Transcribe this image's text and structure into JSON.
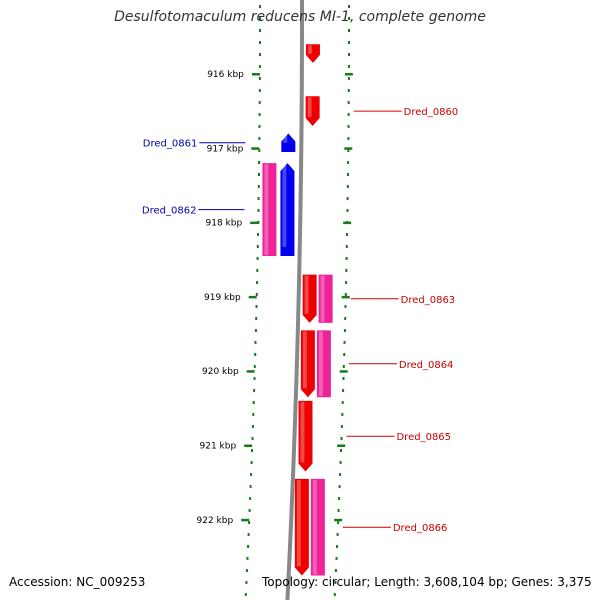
{
  "header": {
    "title": "Desulfotomaculum reducens MI-1, complete genome"
  },
  "footer": {
    "accession": "Accession: NC_009253",
    "summary": "Topology: circular; Length: 3,608,104 bp; Genes: 3,375"
  },
  "colors": {
    "backbone": "#888888",
    "forward_cds": "#ee0000",
    "reverse_cds": "#0000ee",
    "feature_pink": "#ee2299",
    "label_forward": "#cc0000",
    "label_reverse": "#0000aa",
    "ruler_tick": "#1a7a1a",
    "ruler_label": "#000000"
  },
  "scale": {
    "unit": "kbp",
    "start_kbp": 915.6,
    "end_kbp": 922.7
  },
  "ruler": [
    "916 kbp",
    "917 kbp",
    "918 kbp",
    "919 kbp",
    "920 kbp",
    "921 kbp",
    "922 kbp"
  ],
  "genes": [
    {
      "label": "",
      "start_kbp": 915.6,
      "end_kbp": 915.85,
      "strand": "forward"
    },
    {
      "label": "Dred_0860",
      "start_kbp": 916.3,
      "end_kbp": 916.7,
      "strand": "forward"
    },
    {
      "label": "Dred_0861",
      "start_kbp": 916.8,
      "end_kbp": 917.05,
      "strand": "reverse"
    },
    {
      "label": "Dred_0862",
      "start_kbp": 917.2,
      "end_kbp": 918.45,
      "strand": "reverse"
    },
    {
      "label": "Dred_0863",
      "start_kbp": 918.7,
      "end_kbp": 919.35,
      "strand": "forward"
    },
    {
      "label": "Dred_0864",
      "start_kbp": 919.45,
      "end_kbp": 920.35,
      "strand": "forward"
    },
    {
      "label": "Dred_0865",
      "start_kbp": 920.4,
      "end_kbp": 921.35,
      "strand": "forward"
    },
    {
      "label": "Dred_0866",
      "start_kbp": 921.45,
      "end_kbp": 922.75,
      "strand": "forward"
    }
  ],
  "features": [
    {
      "start_kbp": 917.2,
      "end_kbp": 918.45,
      "side": "reverse"
    },
    {
      "start_kbp": 918.7,
      "end_kbp": 919.35,
      "side": "forward"
    },
    {
      "start_kbp": 919.45,
      "end_kbp": 920.35,
      "side": "forward"
    },
    {
      "start_kbp": 921.45,
      "end_kbp": 922.75,
      "side": "forward"
    }
  ]
}
